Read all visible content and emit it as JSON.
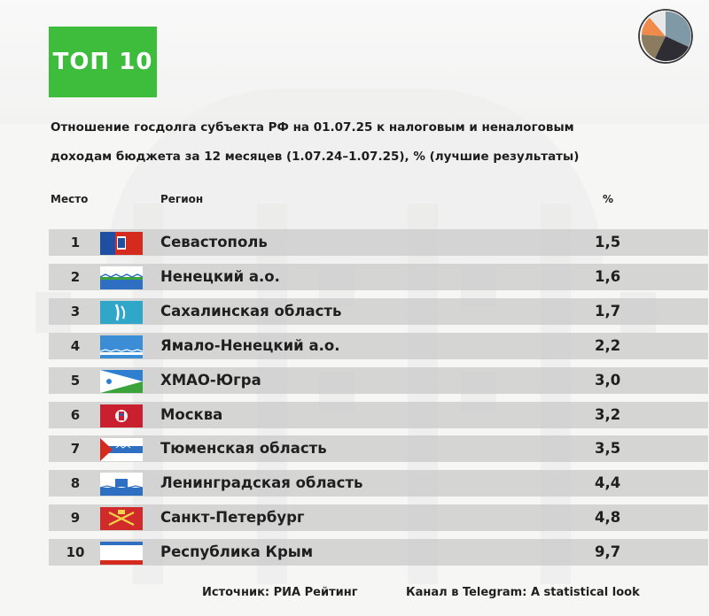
{
  "badge": {
    "label": "ТОП 10",
    "color": "#3dbd3b"
  },
  "logo": {
    "icon": "pie-logo-icon"
  },
  "title": {
    "line1": "Отношение госдолга субъекта РФ на 01.07.25 к налоговым и неналоговым",
    "line2": "доходам бюджета за 12 месяцев (1.07.24–1.07.25), % (лучшие результаты)"
  },
  "headers": {
    "place": "Место",
    "region": "Регион",
    "pct": "%"
  },
  "chart_data": {
    "type": "table",
    "columns": [
      "Место",
      "Регион",
      "%"
    ],
    "rows": [
      {
        "rank": "1",
        "region": "Севастополь",
        "value": "1,5",
        "flag_icon": "flag-sevastopol-icon"
      },
      {
        "rank": "2",
        "region": "Ненецкий а.о.",
        "value": "1,6",
        "flag_icon": "flag-nenets-icon"
      },
      {
        "rank": "3",
        "region": "Сахалинская область",
        "value": "1,7",
        "flag_icon": "flag-sakhalin-icon"
      },
      {
        "rank": "4",
        "region": "Ямало-Ненецкий а.о.",
        "value": "2,2",
        "flag_icon": "flag-yamalo-nenets-icon"
      },
      {
        "rank": "5",
        "region": "ХМАО-Югра",
        "value": "3,0",
        "flag_icon": "flag-khmao-icon"
      },
      {
        "rank": "6",
        "region": "Москва",
        "value": "3,2",
        "flag_icon": "flag-moscow-icon"
      },
      {
        "rank": "7",
        "region": "Тюменская область",
        "value": "3,5",
        "flag_icon": "flag-tyumen-icon"
      },
      {
        "rank": "8",
        "region": "Ленинградская область",
        "value": "4,4",
        "flag_icon": "flag-leningrad-oblast-icon"
      },
      {
        "rank": "9",
        "region": "Санкт-Петербург",
        "value": "4,8",
        "flag_icon": "flag-saint-petersburg-icon"
      },
      {
        "rank": "10",
        "region": "Республика Крым",
        "value": "9,7",
        "flag_icon": "flag-crimea-icon"
      }
    ]
  },
  "footer": {
    "source": "Источник: РИА Рейтинг",
    "telegram": "Канал в Telegram: A statistical look"
  }
}
